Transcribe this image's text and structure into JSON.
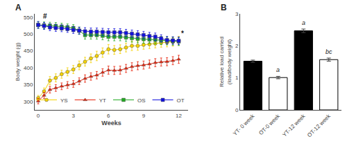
{
  "chart_data": [
    {
      "type": "line",
      "title": "A",
      "x": [
        0,
        0.5,
        1,
        1.5,
        2,
        2.5,
        3,
        3.5,
        4,
        4.5,
        5,
        5.5,
        6,
        6.5,
        7,
        7.5,
        8,
        8.5,
        9,
        9.5,
        10,
        10.5,
        11,
        11.5,
        12
      ],
      "xlabel": "Weeks",
      "ylabel": "Body weight (g)",
      "xlim": [
        -0.3,
        12.8
      ],
      "xticks": [
        0,
        3,
        6,
        9,
        12
      ],
      "ylim": [
        275,
        560
      ],
      "yticks": [
        300,
        350,
        400,
        450,
        500,
        550
      ],
      "grid": false,
      "legend": "lower right",
      "series": [
        {
          "name": "YS",
          "color": "#f5d200",
          "marker": "circle",
          "values": [
            310,
            330,
            362,
            370,
            381,
            388,
            395,
            407,
            418,
            428,
            435,
            445,
            455,
            453,
            455,
            460,
            465,
            465,
            468,
            470,
            472,
            474,
            475,
            477,
            480
          ],
          "errors": [
            8,
            10,
            12,
            12,
            12,
            12,
            12,
            13,
            13,
            13,
            14,
            14,
            14,
            13,
            13,
            13,
            14,
            13,
            13,
            13,
            13,
            13,
            13,
            13,
            13
          ]
        },
        {
          "name": "YT",
          "color": "#e8220a",
          "marker": "triangle-up",
          "values": [
            301,
            318,
            335,
            340,
            345,
            349,
            352,
            360,
            368,
            374,
            378,
            386,
            393,
            392,
            393,
            398,
            403,
            406,
            408,
            411,
            415,
            417,
            418,
            421,
            425
          ],
          "errors": [
            8,
            9,
            10,
            10,
            10,
            10,
            10,
            10,
            11,
            11,
            11,
            11,
            12,
            12,
            12,
            12,
            12,
            12,
            12,
            12,
            12,
            12,
            12,
            12,
            12
          ]
        },
        {
          "name": "OS",
          "color": "#22aa22",
          "marker": "square",
          "values": [
            527,
            526,
            525,
            524,
            522,
            520,
            518,
            510,
            497,
            497,
            497,
            495,
            492,
            492,
            492,
            490,
            488,
            486,
            485,
            484,
            483,
            481,
            480,
            479,
            478
          ],
          "errors": [
            10,
            10,
            10,
            10,
            10,
            10,
            10,
            11,
            12,
            12,
            12,
            12,
            12,
            12,
            12,
            12,
            12,
            12,
            12,
            12,
            12,
            12,
            12,
            12,
            12
          ]
        },
        {
          "name": "OT",
          "color": "#1111dd",
          "marker": "square",
          "values": [
            527,
            524,
            520,
            518,
            517,
            515,
            512,
            510,
            508,
            507,
            507,
            506,
            505,
            505,
            505,
            503,
            501,
            499,
            497,
            494,
            492,
            487,
            482,
            481,
            480
          ],
          "errors": [
            10,
            10,
            10,
            10,
            10,
            10,
            10,
            10,
            11,
            11,
            11,
            11,
            11,
            11,
            11,
            11,
            11,
            11,
            11,
            11,
            11,
            11,
            11,
            11,
            11
          ]
        }
      ],
      "annotations": [
        {
          "text": "#",
          "x": 0.3,
          "y": 537
        },
        {
          "text": "*",
          "x": 12.1,
          "y": 487
        }
      ]
    },
    {
      "type": "bar",
      "title": "B",
      "categories": [
        "YT- 0 week",
        "OT-0 week",
        "YT-12 week",
        "OT-12 week"
      ],
      "values": [
        1.52,
        1.01,
        2.47,
        1.57
      ],
      "errors": [
        0.035,
        0.038,
        0.055,
        0.048
      ],
      "colors": [
        "black",
        "white",
        "black",
        "white"
      ],
      "ylabel": "Relative load carried\n(load/body weight)",
      "ylim": [
        0,
        3
      ],
      "yticks": [
        0,
        1,
        2,
        3
      ],
      "grid": false,
      "annotations": [
        {
          "text": "a",
          "category": "OT-0 week"
        },
        {
          "text": "a",
          "category": "YT-12 week"
        },
        {
          "text": "bc",
          "category": "OT-12 week"
        }
      ]
    }
  ]
}
